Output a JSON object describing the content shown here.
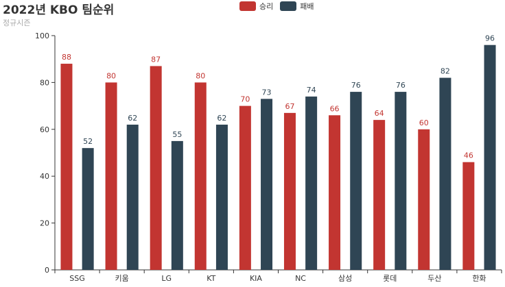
{
  "header": {
    "title": "2022년 KBO 팀순위",
    "subtitle": "정규시즌"
  },
  "colors": {
    "win": "#c23531",
    "loss": "#2f4554",
    "axis": "#333333",
    "label": "#333333"
  },
  "chart_data": {
    "type": "bar",
    "title": "2022년 KBO 팀순위",
    "subtitle": "정규시즌",
    "categories": [
      "SSG",
      "키움",
      "LG",
      "KT",
      "KIA",
      "NC",
      "삼성",
      "롯데",
      "두산",
      "한화"
    ],
    "series": [
      {
        "name": "승리",
        "values": [
          88,
          80,
          87,
          80,
          70,
          67,
          66,
          64,
          60,
          46
        ]
      },
      {
        "name": "패배",
        "values": [
          52,
          62,
          55,
          62,
          73,
          74,
          76,
          76,
          82,
          96
        ]
      }
    ],
    "ylim": [
      0,
      100
    ],
    "yticks": [
      0,
      20,
      40,
      60,
      80,
      100
    ],
    "legend_position": "top-center",
    "grid": false,
    "data_labels": true
  }
}
